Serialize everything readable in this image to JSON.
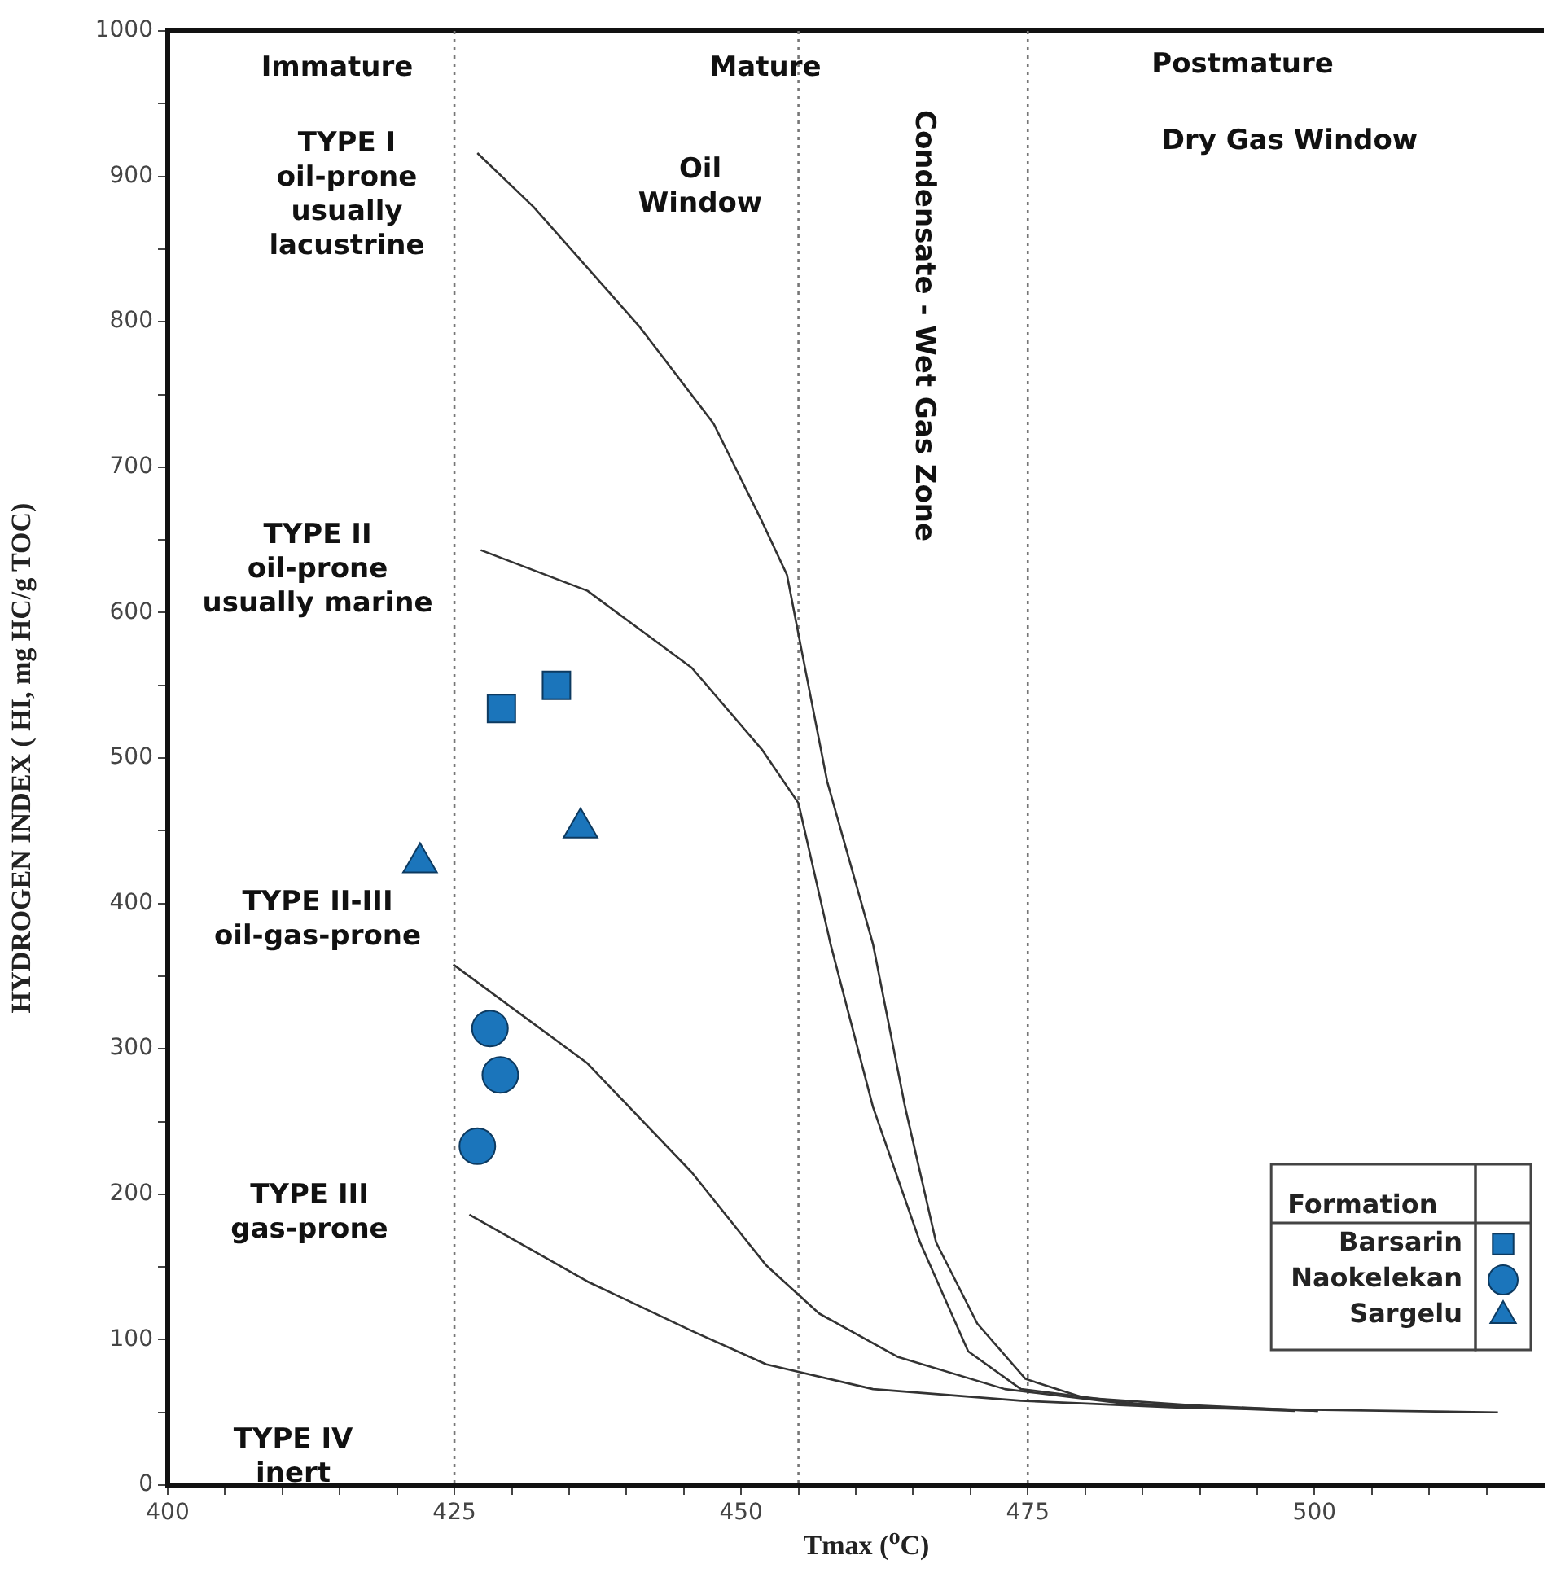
{
  "chart_data": {
    "type": "scatter",
    "xlabel": "Tmax ($^{o}$C)",
    "ylabel": "HYDROGEN INDEX ( HI, mg HC/g TOC)",
    "legend_title": "Formation",
    "legend": "bottom right",
    "grid": false,
    "xlim": [
      400,
      520
    ],
    "xticks": [
      400,
      {
        "value": 405,
        "label": null
      },
      {
        "value": 410,
        "label": null
      },
      {
        "value": 415,
        "label": null
      },
      {
        "value": 420,
        "label": null
      },
      425,
      {
        "value": 430,
        "label": null
      },
      {
        "value": 435,
        "label": null
      },
      {
        "value": 440,
        "label": null
      },
      {
        "value": 445,
        "label": null
      },
      450,
      {
        "value": 455,
        "label": null
      },
      {
        "value": 460,
        "label": null
      },
      {
        "value": 465,
        "label": null
      },
      {
        "value": 470,
        "label": null
      },
      475,
      {
        "value": 480,
        "label": null
      },
      {
        "value": 485,
        "label": null
      },
      {
        "value": 490,
        "label": null
      },
      {
        "value": 495,
        "label": null
      },
      500,
      {
        "value": 505,
        "label": null
      },
      {
        "value": 510,
        "label": null
      },
      {
        "value": 515,
        "label": null
      }
    ],
    "ylim": [
      0,
      1000
    ],
    "yticks": [
      0,
      {
        "value": 50,
        "label": null
      },
      100,
      {
        "value": 150,
        "label": null
      },
      200,
      {
        "value": 250,
        "label": null
      },
      300,
      {
        "value": 350,
        "label": null
      },
      400,
      {
        "value": 450,
        "label": null
      },
      500,
      {
        "value": 550,
        "label": null
      },
      600,
      {
        "value": 650,
        "label": null
      },
      700,
      {
        "value": 750,
        "label": null
      },
      800,
      {
        "value": 850,
        "label": null
      },
      900,
      {
        "value": 950,
        "label": null
      },
      1000
    ],
    "series": [
      {
        "type": "line",
        "color": "#333333",
        "marker": "none",
        "x": [
          427,
          431.9,
          441.1,
          447.6,
          451.8,
          454,
          455.3,
          457.5,
          461.5,
          464.3,
          467,
          470.6,
          474.8,
          479.9,
          489.2,
          500.3
        ],
        "values": [
          916,
          879,
          797,
          730,
          663,
          626,
          573,
          484,
          372,
          260,
          167,
          111,
          73,
          60,
          55,
          51
        ]
      },
      {
        "type": "line",
        "color": "#333333",
        "marker": "none",
        "x": [
          427.3,
          436.6,
          445.7,
          451.8,
          455,
          457.8,
          461.5,
          465.6,
          469.8,
          474.4,
          484.5,
          500.3
        ],
        "values": [
          643,
          615,
          562,
          506,
          469,
          372,
          260,
          167,
          92,
          66,
          56,
          51
        ]
      },
      {
        "type": "line",
        "color": "#333333",
        "marker": "none",
        "x": [
          424.9,
          436.6,
          445.7,
          452.2,
          456.8,
          463.7,
          473,
          484.5,
          498.3
        ],
        "values": [
          358,
          290,
          215,
          151,
          118,
          88,
          66,
          55,
          51
        ]
      },
      {
        "type": "line",
        "color": "#333333",
        "marker": "none",
        "x": [
          426.3,
          436.6,
          445.7,
          452.2,
          461.5,
          474.4,
          489.2,
          516
        ],
        "values": [
          186,
          140,
          106,
          83,
          66,
          58,
          53,
          50
        ]
      },
      {
        "name": "Barsarin",
        "color": "#1b75bb",
        "marker": "square",
        "x": [
          429.1,
          433.9
        ],
        "values": [
          534,
          550
        ]
      },
      {
        "name": "Naokelekan",
        "color": "#1b75bb",
        "marker": "circle",
        "x": [
          428.1,
          429,
          427
        ],
        "values": [
          314,
          282,
          233
        ]
      },
      {
        "name": "Sargelu",
        "color": "#1b75bb",
        "marker": "triangle",
        "x": [
          422,
          436
        ],
        "values": [
          428,
          452
        ]
      }
    ],
    "ref_lines": [
      {
        "axis": "x",
        "value": 425,
        "color": "#777777",
        "line_style": "dotted"
      },
      {
        "axis": "x",
        "value": 455,
        "color": "#777777",
        "line_style": "dotted"
      },
      {
        "axis": "x",
        "value": 475,
        "color": "#777777",
        "line_style": "dotted"
      }
    ],
    "annotations": [
      "Immature",
      "Mature",
      "Postmature",
      "Oil\nWindow",
      "Dry Gas Window",
      "Condensate - Wet Gas Zone",
      "TYPE I\noil-prone\nusually\nlacustrine",
      "TYPE II\noil-prone\nusually marine",
      "TYPE II-III\noil-gas-prone",
      "TYPE III\ngas-prone",
      "TYPE IV\ninert"
    ]
  }
}
